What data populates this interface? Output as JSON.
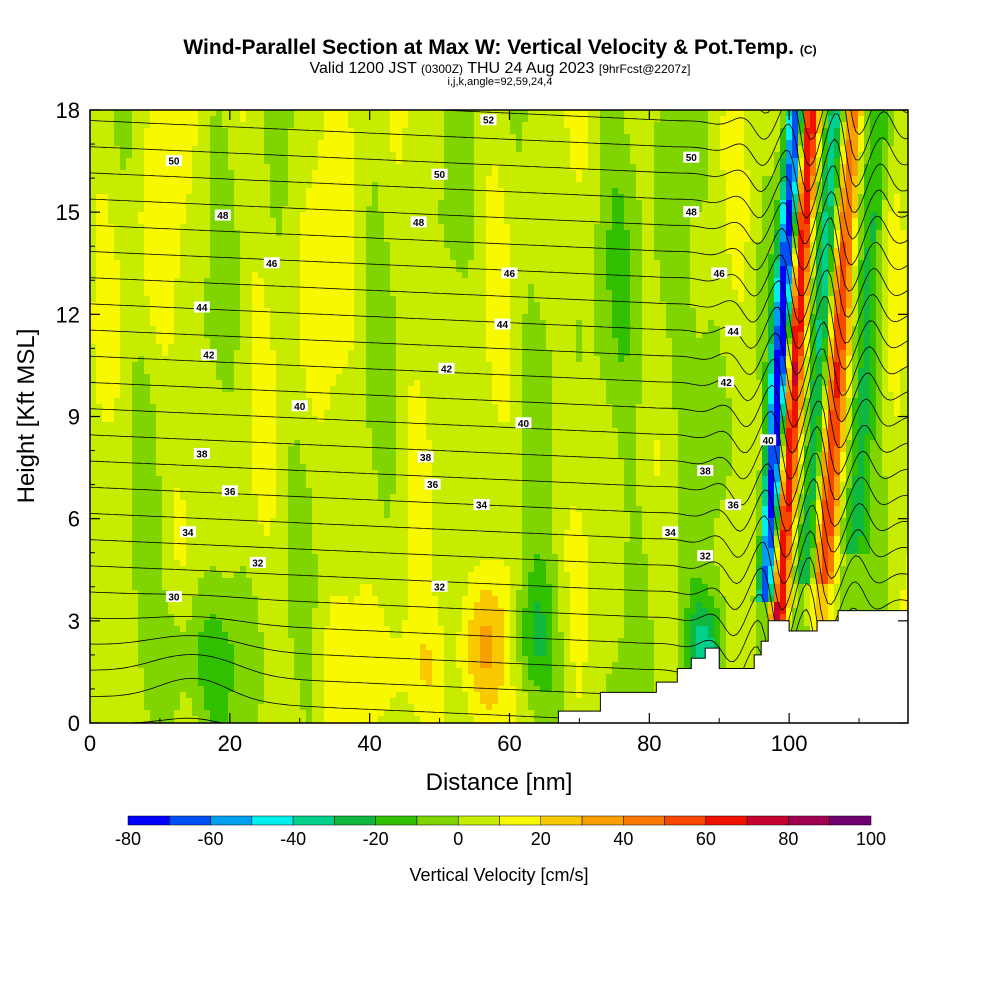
{
  "header": {
    "title": "Wind-Parallel Section at Max W: Vertical Velocity & Pot.Temp.",
    "copyright": "(C)",
    "subtitle_pre": "Valid 1200 JST",
    "subtitle_utc": "(0300Z)",
    "subtitle_date": "THU 24 Aug 2023",
    "subtitle_fcst": "[9hrFcst@2207z]",
    "params": "i,j,k,angle=92,59,24,4"
  },
  "chart_data": {
    "type": "heatmap",
    "title": "Wind-Parallel Section at Max W: Vertical Velocity & Pot.Temp.",
    "xlabel": "Distance [nm]",
    "ylabel": "Height [Kft MSL]",
    "xlim": [
      0,
      117
    ],
    "ylim": [
      0,
      18
    ],
    "x_ticks": [
      0,
      20,
      40,
      60,
      80,
      100
    ],
    "y_ticks": [
      0,
      3,
      6,
      9,
      12,
      15,
      18
    ],
    "grid": false,
    "colorbar": {
      "title": "Vertical Velocity [cm/s]",
      "placement": "bottom",
      "levels": [
        -80,
        -70,
        -60,
        -50,
        -40,
        -30,
        -20,
        -10,
        0,
        10,
        20,
        30,
        40,
        50,
        60,
        70,
        80,
        90,
        100
      ],
      "tick_labels": [
        -80,
        -60,
        -40,
        -20,
        0,
        20,
        40,
        60,
        80,
        100
      ],
      "colors": [
        "#0000ff",
        "#0050f5",
        "#00a0f0",
        "#00f0f0",
        "#00d08c",
        "#10b840",
        "#30c000",
        "#80d400",
        "#c8ec00",
        "#f8f800",
        "#f8c800",
        "#f8a000",
        "#f87800",
        "#f84800",
        "#f01000",
        "#c80030",
        "#a00050",
        "#700070"
      ]
    },
    "theta_contours": {
      "interval": 1,
      "range": [
        29,
        54
      ],
      "labeled": [
        {
          "value": 52,
          "x": 57,
          "y": 17.7
        },
        {
          "value": 50,
          "x": 12,
          "y": 16.5
        },
        {
          "value": 50,
          "x": 50,
          "y": 16.1
        },
        {
          "value": 50,
          "x": 86,
          "y": 16.6
        },
        {
          "value": 48,
          "x": 19,
          "y": 14.9
        },
        {
          "value": 48,
          "x": 47,
          "y": 14.7
        },
        {
          "value": 48,
          "x": 86,
          "y": 15.0
        },
        {
          "value": 46,
          "x": 26,
          "y": 13.5
        },
        {
          "value": 46,
          "x": 60,
          "y": 13.2
        },
        {
          "value": 46,
          "x": 90,
          "y": 13.2
        },
        {
          "value": 44,
          "x": 16,
          "y": 12.2
        },
        {
          "value": 44,
          "x": 59,
          "y": 11.7
        },
        {
          "value": 44,
          "x": 92,
          "y": 11.5
        },
        {
          "value": 42,
          "x": 17,
          "y": 10.8
        },
        {
          "value": 42,
          "x": 51,
          "y": 10.4
        },
        {
          "value": 42,
          "x": 91,
          "y": 10.0
        },
        {
          "value": 40,
          "x": 30,
          "y": 9.3
        },
        {
          "value": 40,
          "x": 62,
          "y": 8.8
        },
        {
          "value": 40,
          "x": 97,
          "y": 8.3
        },
        {
          "value": 38,
          "x": 16,
          "y": 7.9
        },
        {
          "value": 38,
          "x": 48,
          "y": 7.8
        },
        {
          "value": 38,
          "x": 88,
          "y": 7.4
        },
        {
          "value": 36,
          "x": 20,
          "y": 6.8
        },
        {
          "value": 36,
          "x": 49,
          "y": 7.0
        },
        {
          "value": 36,
          "x": 92,
          "y": 6.4
        },
        {
          "value": 34,
          "x": 14,
          "y": 5.6
        },
        {
          "value": 34,
          "x": 56,
          "y": 6.4
        },
        {
          "value": 34,
          "x": 83,
          "y": 5.6
        },
        {
          "value": 32,
          "x": 24,
          "y": 4.7
        },
        {
          "value": 32,
          "x": 50,
          "y": 4.0
        },
        {
          "value": 32,
          "x": 88,
          "y": 4.9
        },
        {
          "value": 30,
          "x": 12,
          "y": 3.7
        }
      ]
    },
    "terrain": [
      [
        0,
        0
      ],
      [
        67,
        0
      ],
      [
        67,
        0.35
      ],
      [
        73,
        0.35
      ],
      [
        73,
        0.9
      ],
      [
        81,
        0.9
      ],
      [
        81,
        1.2
      ],
      [
        84,
        1.2
      ],
      [
        84,
        1.6
      ],
      [
        86,
        1.6
      ],
      [
        86,
        1.9
      ],
      [
        88,
        1.9
      ],
      [
        88,
        2.2
      ],
      [
        90,
        2.2
      ],
      [
        90,
        1.6
      ],
      [
        95,
        1.6
      ],
      [
        95,
        2.0
      ],
      [
        96,
        2.0
      ],
      [
        96,
        2.4
      ],
      [
        97,
        2.4
      ],
      [
        97,
        3.0
      ],
      [
        100,
        3.0
      ],
      [
        100,
        2.7
      ],
      [
        104,
        2.7
      ],
      [
        104,
        3.0
      ],
      [
        107,
        3.0
      ],
      [
        107,
        3.3
      ],
      [
        117,
        3.3
      ],
      [
        117,
        0
      ]
    ]
  }
}
